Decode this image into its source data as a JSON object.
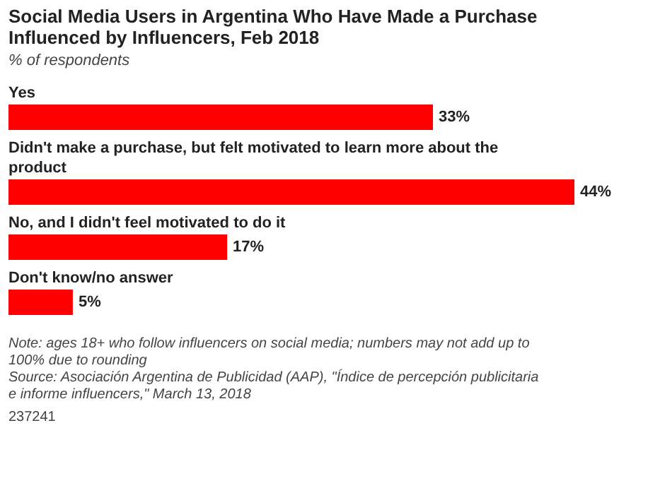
{
  "chart_data": {
    "type": "bar",
    "orientation": "horizontal",
    "title": "Social Media Users in Argentina Who Have Made a Purchase Influenced by Influencers, Feb 2018",
    "subtitle": "% of respondents",
    "categories": [
      "Yes",
      "Didn't make a purchase, but felt motivated to learn more about the product",
      "No, and I didn't feel motivated to do it",
      "Don't know/no answer"
    ],
    "values": [
      33,
      44,
      17,
      5
    ],
    "color": "#ff0000",
    "value_labels": [
      "33%",
      "44%",
      "17%",
      "5%"
    ],
    "annotations": [
      "Note: ages 18+ who follow influencers on social media; numbers may not add up to 100% due to rounding",
      "Source: Asociación Argentina de Publicidad (AAP), \"Índice de percepción publicitaria e informe influencers,\" March 13, 2018",
      "237241"
    ]
  }
}
